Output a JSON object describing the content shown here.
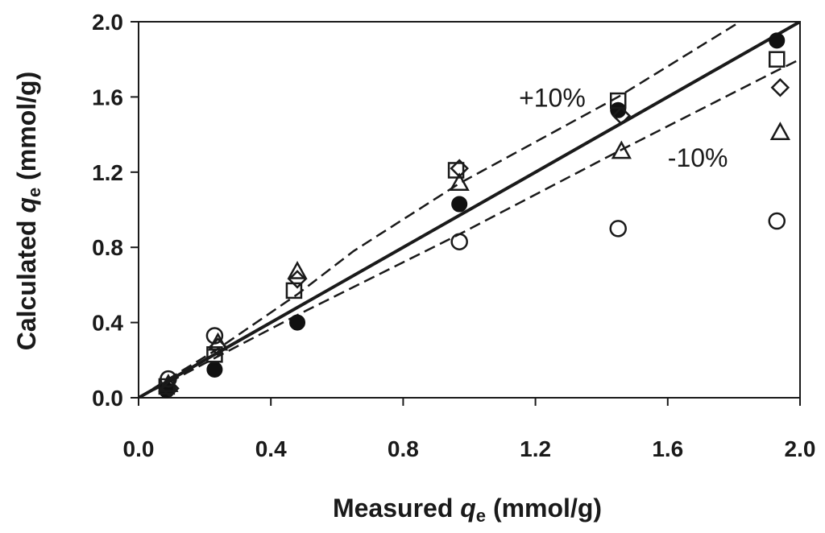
{
  "chart_data": {
    "type": "scatter",
    "title": "",
    "xlabel": {
      "prefix": "Measured ",
      "var": "q",
      "sub": "e",
      "suffix": " (mmol/g)"
    },
    "ylabel": {
      "prefix": "Calculated ",
      "var": "q",
      "sub": "e",
      "suffix": " (mmol/g)"
    },
    "xlim": [
      0,
      2
    ],
    "ylim": [
      0,
      2
    ],
    "xticks": [
      "0.0",
      "0.4",
      "0.8",
      "1.2",
      "1.6",
      "2.0"
    ],
    "yticks": [
      "0.0",
      "0.4",
      "0.8",
      "1.2",
      "1.6",
      "2.0"
    ],
    "grid": false,
    "legend": "none",
    "lines": [
      {
        "name": "y = x",
        "style": "solid",
        "points": [
          [
            0,
            0
          ],
          [
            2,
            2
          ]
        ]
      },
      {
        "name": "+10%",
        "style": "dashed",
        "points": [
          [
            0,
            0
          ],
          [
            0.1,
            0.11
          ],
          [
            0.24,
            0.26
          ],
          [
            0.48,
            0.55
          ],
          [
            0.65,
            0.78
          ],
          [
            0.97,
            1.14
          ],
          [
            1.45,
            1.6
          ],
          [
            1.8,
            1.98
          ],
          [
            1.82,
            2.0
          ]
        ]
      },
      {
        "name": "-10%",
        "style": "dashed",
        "points": [
          [
            0,
            0
          ],
          [
            0.1,
            0.09
          ],
          [
            0.24,
            0.22
          ],
          [
            0.48,
            0.44
          ],
          [
            0.97,
            0.87
          ],
          [
            1.45,
            1.31
          ],
          [
            1.93,
            1.74
          ],
          [
            2.0,
            1.8
          ]
        ]
      }
    ],
    "annotations": [
      {
        "text": "+10%",
        "x": 1.15,
        "y": 1.6
      },
      {
        "text": "-10%",
        "x": 1.6,
        "y": 1.28
      }
    ],
    "series": [
      {
        "name": "filled circle",
        "marker": "circle-filled",
        "x": [
          0.085,
          0.23,
          0.48,
          0.97,
          1.45,
          1.93
        ],
        "y": [
          0.04,
          0.15,
          0.4,
          1.03,
          1.53,
          1.9
        ]
      },
      {
        "name": "open circle",
        "marker": "circle-open",
        "x": [
          0.09,
          0.23,
          0.97,
          1.45,
          1.93
        ],
        "y": [
          0.1,
          0.33,
          0.83,
          0.9,
          0.94
        ]
      },
      {
        "name": "open square",
        "marker": "square-open",
        "x": [
          0.085,
          0.23,
          0.47,
          0.96,
          1.45,
          1.93
        ],
        "y": [
          0.06,
          0.23,
          0.57,
          1.21,
          1.58,
          1.8
        ]
      },
      {
        "name": "open triangle",
        "marker": "triangle-open",
        "x": [
          0.09,
          0.24,
          0.48,
          0.97,
          1.46,
          1.94
        ],
        "y": [
          0.07,
          0.29,
          0.67,
          1.14,
          1.31,
          1.41
        ]
      },
      {
        "name": "open diamond",
        "marker": "diamond-open",
        "x": [
          0.095,
          0.24,
          0.48,
          0.97,
          1.46,
          1.94
        ],
        "y": [
          0.05,
          0.27,
          0.63,
          1.22,
          1.5,
          1.65
        ]
      }
    ]
  }
}
